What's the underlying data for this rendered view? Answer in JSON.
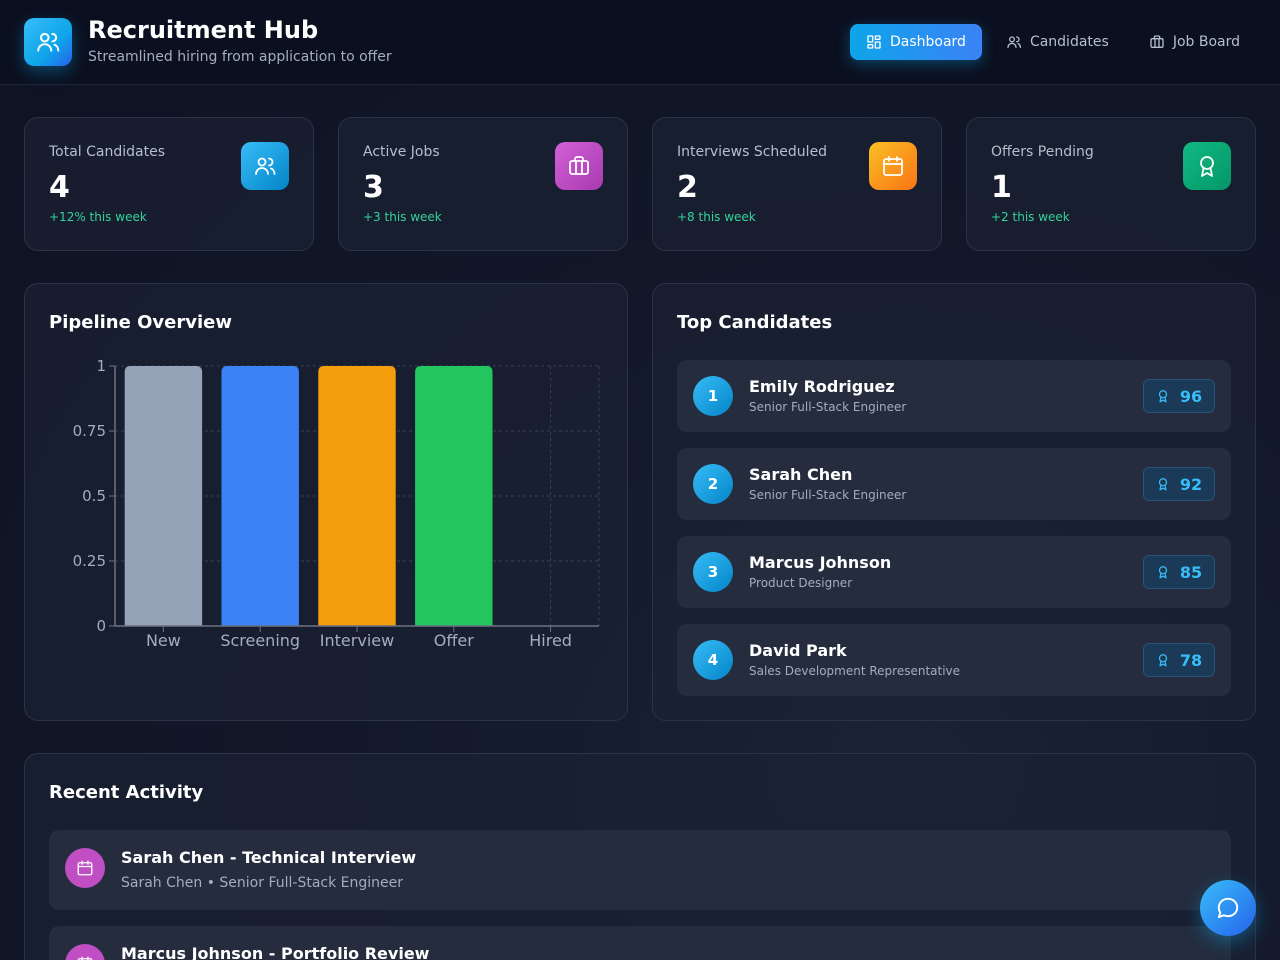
{
  "header": {
    "title": "Recruitment Hub",
    "subtitle": "Streamlined hiring from application to offer",
    "logo_icon": "users-icon"
  },
  "nav": {
    "items": [
      {
        "label": "Dashboard",
        "icon": "dashboard-icon",
        "active": true
      },
      {
        "label": "Candidates",
        "icon": "users-icon",
        "active": false
      },
      {
        "label": "Job Board",
        "icon": "briefcase-icon",
        "active": false
      }
    ]
  },
  "stats": [
    {
      "label": "Total Candidates",
      "value": "4",
      "delta": "+12% this week",
      "icon": "users-icon",
      "color": "#0ea5e9"
    },
    {
      "label": "Active Jobs",
      "value": "3",
      "delta": "+3 this week",
      "icon": "briefcase-icon",
      "color": "#c04fc4"
    },
    {
      "label": "Interviews Scheduled",
      "value": "2",
      "delta": "+8 this week",
      "icon": "calendar-icon",
      "color": "#f59e0b"
    },
    {
      "label": "Offers Pending",
      "value": "1",
      "delta": "+2 this week",
      "icon": "award-icon",
      "color": "#10b981"
    }
  ],
  "pipeline": {
    "title": "Pipeline Overview"
  },
  "chart_data": {
    "type": "bar",
    "title": "",
    "xlabel": "",
    "ylabel": "",
    "categories": [
      "New",
      "Screening",
      "Interview",
      "Offer",
      "Hired"
    ],
    "values": [
      1,
      1,
      1,
      1,
      0
    ],
    "colors": [
      "#94a3b8",
      "#3b82f6",
      "#f59e0b",
      "#22c55e",
      "#8b5cf6"
    ],
    "ylim": [
      0,
      1
    ],
    "yticks": [
      "0",
      "0.25",
      "0.5",
      "0.75",
      "1"
    ],
    "grid": true
  },
  "top_candidates": {
    "title": "Top Candidates",
    "items": [
      {
        "rank": "1",
        "name": "Emily Rodriguez",
        "role": "Senior Full-Stack Engineer",
        "score": "96"
      },
      {
        "rank": "2",
        "name": "Sarah Chen",
        "role": "Senior Full-Stack Engineer",
        "score": "92"
      },
      {
        "rank": "3",
        "name": "Marcus Johnson",
        "role": "Product Designer",
        "score": "85"
      },
      {
        "rank": "4",
        "name": "David Park",
        "role": "Sales Development Representative",
        "score": "78"
      }
    ]
  },
  "activity": {
    "title": "Recent Activity",
    "items": [
      {
        "title": "Sarah Chen - Technical Interview",
        "subtitle": "Sarah Chen • Senior Full-Stack Engineer",
        "icon": "calendar-icon"
      },
      {
        "title": "Marcus Johnson - Portfolio Review",
        "subtitle": "",
        "icon": "calendar-icon"
      }
    ]
  },
  "fab": {
    "icon": "chat-icon"
  }
}
